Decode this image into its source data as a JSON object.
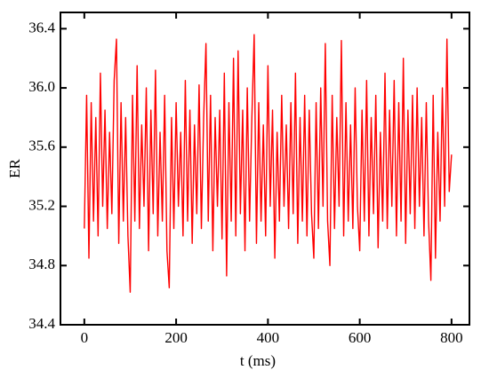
{
  "chart_data": {
    "type": "line",
    "x_label": "t (ms)",
    "y_label": "ER",
    "x": [
      0,
      5,
      10,
      15,
      20,
      25,
      30,
      35,
      40,
      45,
      50,
      55,
      60,
      65,
      70,
      75,
      80,
      85,
      90,
      95,
      100,
      105,
      110,
      115,
      120,
      125,
      130,
      135,
      140,
      145,
      150,
      155,
      160,
      165,
      170,
      175,
      180,
      185,
      190,
      195,
      200,
      205,
      210,
      215,
      220,
      225,
      230,
      235,
      240,
      245,
      250,
      255,
      260,
      265,
      270,
      275,
      280,
      285,
      290,
      295,
      300,
      305,
      310,
      315,
      320,
      325,
      330,
      335,
      340,
      345,
      350,
      355,
      360,
      365,
      370,
      375,
      380,
      385,
      390,
      395,
      400,
      405,
      410,
      415,
      420,
      425,
      430,
      435,
      440,
      445,
      450,
      455,
      460,
      465,
      470,
      475,
      480,
      485,
      490,
      495,
      500,
      505,
      510,
      515,
      520,
      525,
      530,
      535,
      540,
      545,
      550,
      555,
      560,
      565,
      570,
      575,
      580,
      585,
      590,
      595,
      600,
      605,
      610,
      615,
      620,
      625,
      630,
      635,
      640,
      645,
      650,
      655,
      660,
      665,
      670,
      675,
      680,
      685,
      690,
      695,
      700,
      705,
      710,
      715,
      720,
      725,
      730,
      735,
      740,
      745,
      750,
      755,
      760,
      765,
      770,
      775,
      780,
      785,
      790,
      795,
      800
    ],
    "series": [
      {
        "color": "#ff0000",
        "values": [
          35.05,
          35.95,
          34.85,
          35.9,
          35.1,
          35.8,
          35.0,
          36.1,
          35.2,
          35.85,
          35.05,
          35.7,
          35.15,
          36.05,
          36.33,
          34.95,
          35.9,
          35.1,
          35.8,
          35.0,
          34.62,
          35.95,
          35.1,
          36.15,
          35.05,
          35.75,
          35.2,
          36.0,
          34.9,
          35.85,
          35.15,
          36.12,
          35.0,
          35.7,
          35.1,
          35.95,
          34.9,
          34.65,
          35.8,
          35.05,
          35.9,
          35.2,
          35.7,
          35.0,
          36.05,
          35.1,
          35.85,
          34.95,
          35.75,
          35.15,
          36.02,
          35.05,
          35.8,
          36.3,
          35.1,
          35.95,
          34.9,
          35.8,
          35.2,
          35.85,
          34.98,
          36.1,
          34.73,
          35.9,
          35.1,
          36.2,
          35.0,
          36.25,
          35.15,
          35.85,
          34.9,
          36.0,
          35.1,
          35.8,
          36.36,
          34.95,
          35.9,
          35.1,
          35.75,
          35.0,
          36.15,
          35.2,
          35.85,
          34.85,
          35.7,
          35.1,
          35.95,
          35.2,
          35.75,
          35.05,
          35.9,
          35.15,
          36.1,
          34.95,
          35.8,
          35.1,
          35.95,
          35.0,
          35.85,
          35.15,
          34.85,
          35.9,
          35.05,
          36.0,
          35.2,
          36.3,
          35.1,
          34.8,
          35.95,
          35.05,
          35.8,
          35.2,
          36.32,
          35.0,
          35.9,
          35.1,
          35.75,
          35.05,
          36.0,
          35.2,
          34.9,
          35.85,
          35.1,
          36.05,
          35.0,
          35.8,
          35.15,
          35.95,
          34.92,
          35.7,
          35.1,
          36.1,
          35.05,
          35.85,
          35.2,
          36.05,
          35.0,
          35.9,
          35.1,
          36.2,
          34.95,
          35.85,
          35.15,
          35.95,
          35.05,
          36.0,
          35.2,
          35.8,
          35.0,
          35.9,
          35.1,
          34.7,
          35.95,
          34.85,
          35.7,
          35.1,
          36.0,
          35.2,
          36.33,
          35.3,
          35.55
        ]
      }
    ],
    "xlim": [
      -52,
      839
    ],
    "ylim": [
      34.4,
      36.51
    ],
    "xticks": [
      0,
      200,
      400,
      600,
      800
    ],
    "yticks": [
      34.4,
      34.8,
      35.2,
      35.6,
      {
        "value": 36,
        "label": "36.0"
      },
      36.4
    ]
  }
}
